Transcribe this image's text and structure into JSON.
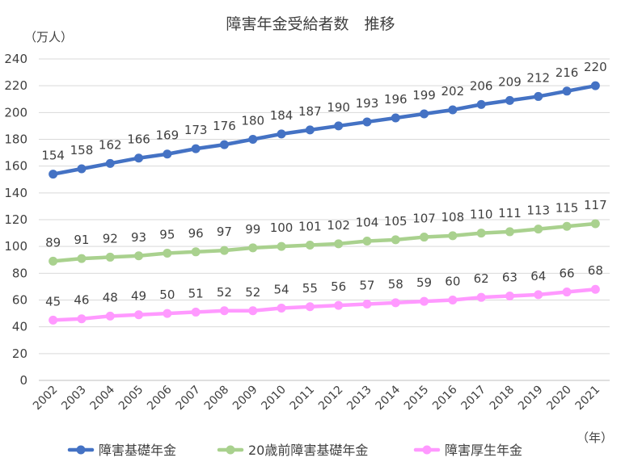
{
  "chart_data": {
    "type": "line",
    "title": "障害年金受給者数　推移",
    "y_unit": "（万人）",
    "x_unit": "（年）",
    "ylim": [
      0,
      240
    ],
    "y_ticks": [
      0,
      20,
      40,
      60,
      80,
      100,
      120,
      140,
      160,
      180,
      200,
      220,
      240
    ],
    "grid": true,
    "legend_position": "bottom",
    "x": [
      "2002",
      "2003",
      "2004",
      "2005",
      "2006",
      "2007",
      "2008",
      "2009",
      "2010",
      "2011",
      "2012",
      "2013",
      "2014",
      "2015",
      "2016",
      "2017",
      "2018",
      "2019",
      "2020",
      "2021"
    ],
    "series": [
      {
        "name": "障害基礎年金",
        "color": "#4472C4",
        "values": [
          154,
          158,
          162,
          166,
          169,
          173,
          176,
          180,
          184,
          187,
          190,
          193,
          196,
          199,
          202,
          206,
          209,
          212,
          216,
          220
        ]
      },
      {
        "name": "20歳前障害基礎年金",
        "color": "#A9D18E",
        "values": [
          89,
          91,
          92,
          93,
          95,
          96,
          97,
          99,
          100,
          101,
          102,
          104,
          105,
          107,
          108,
          110,
          111,
          113,
          115,
          117
        ]
      },
      {
        "name": "障害厚生年金",
        "color": "#FF99FF",
        "values": [
          45,
          46,
          48,
          49,
          50,
          51,
          52,
          52,
          54,
          55,
          56,
          57,
          58,
          59,
          60,
          62,
          63,
          64,
          66,
          68
        ]
      }
    ]
  }
}
